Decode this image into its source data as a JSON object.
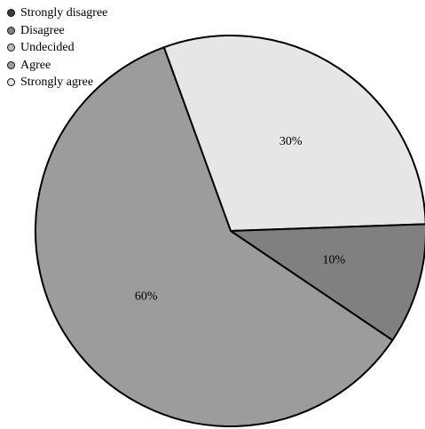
{
  "chart_data": {
    "type": "pie",
    "title": "",
    "legend": {
      "position": "top-left",
      "entries": [
        {
          "label": "Strongly disagree",
          "color": "#3c3c3c"
        },
        {
          "label": "Disagree",
          "color": "#7f7f7f"
        },
        {
          "label": "Undecided",
          "color": "#bdbdbd"
        },
        {
          "label": "Agree",
          "color": "#9e9e9e"
        },
        {
          "label": "Strongly agree",
          "color": "#e6e6e6"
        }
      ]
    },
    "slices": [
      {
        "category": "Strongly agree",
        "value": 30,
        "label": "30%",
        "color": "#e6e6e6"
      },
      {
        "category": "Disagree",
        "value": 10,
        "label": "10%",
        "color": "#808080"
      },
      {
        "category": "Agree",
        "value": 60,
        "label": "60%",
        "color": "#9c9c9c"
      }
    ],
    "start_angle_deg": -110,
    "direction": "clockwise"
  }
}
